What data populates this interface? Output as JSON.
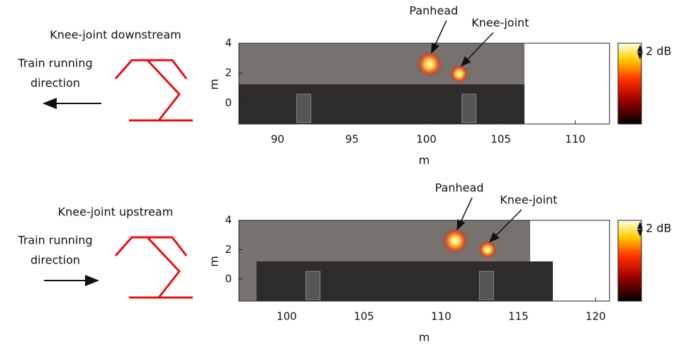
{
  "chart_data": [
    {
      "type": "heatmap",
      "side_title": "Knee-joint downstream",
      "direction_label": [
        "Train running",
        "direction"
      ],
      "direction": "left",
      "xlabel": "m",
      "ylabel": "m",
      "xlim": [
        87.4,
        112.3
      ],
      "ylim": [
        -1.4,
        4
      ],
      "xticks": [
        90,
        95,
        100,
        105,
        110
      ],
      "yticks": [
        0,
        2,
        4
      ],
      "colorbar_label": "2 dB",
      "sources": [
        {
          "name": "Panhead",
          "x": 100.2,
          "y": 2.6
        },
        {
          "name": "Knee-joint",
          "x": 102.2,
          "y": 1.95
        }
      ]
    },
    {
      "type": "heatmap",
      "side_title": "Knee-joint upstream",
      "direction_label": [
        "Train running",
        "direction"
      ],
      "direction": "right",
      "xlabel": "m",
      "ylabel": "m",
      "xlim": [
        96.9,
        120.9
      ],
      "ylim": [
        -1.5,
        4
      ],
      "xticks": [
        100,
        105,
        110,
        115,
        120
      ],
      "yticks": [
        0,
        2,
        4
      ],
      "colorbar_label": "2 dB",
      "sources": [
        {
          "name": "Panhead",
          "x": 110.9,
          "y": 2.6
        },
        {
          "name": "Knee-joint",
          "x": 113.0,
          "y": 2.0
        }
      ]
    }
  ]
}
